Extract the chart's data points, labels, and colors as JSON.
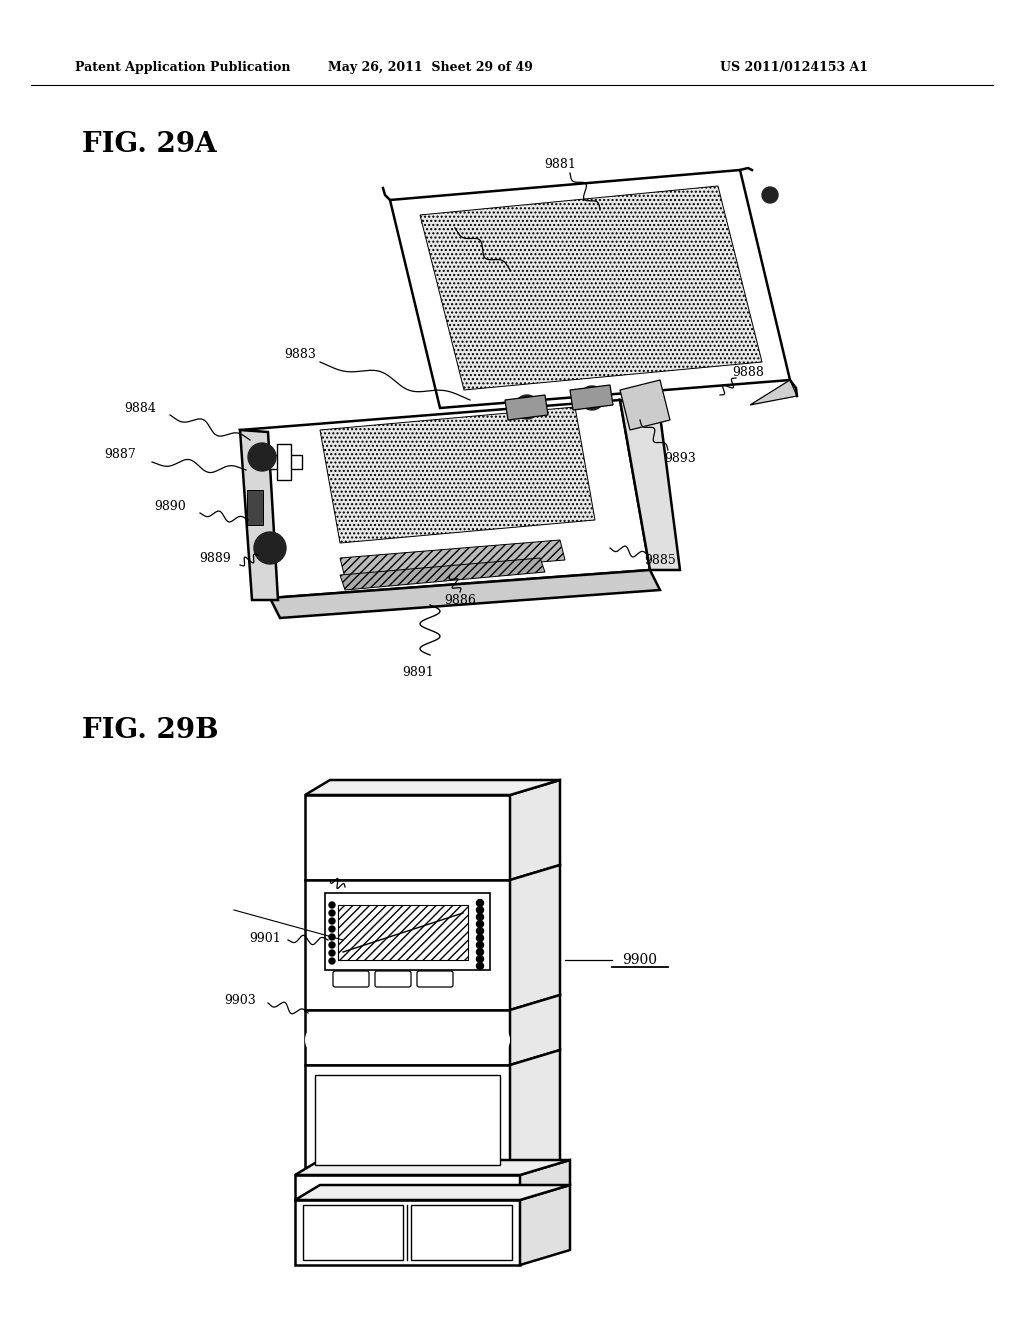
{
  "background_color": "#ffffff",
  "header_left": "Patent Application Publication",
  "header_middle": "May 26, 2011  Sheet 29 of 49",
  "header_right": "US 2011/0124153 A1",
  "fig_a_label": "FIG. 29A",
  "fig_b_label": "FIG. 29B",
  "line_color": "#000000",
  "lw_main": 1.8,
  "lw_thin": 0.9,
  "label_fontsize": 9,
  "fig_label_fontsize": 20
}
